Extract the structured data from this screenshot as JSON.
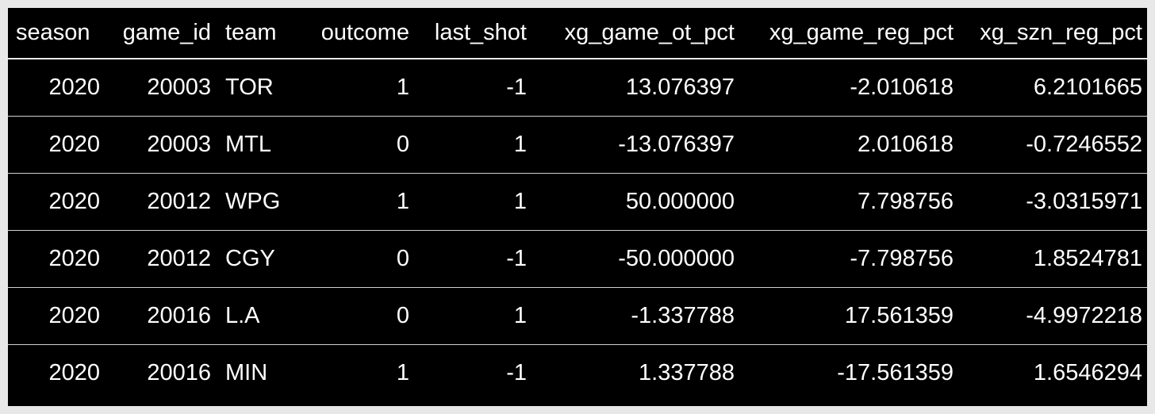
{
  "table": {
    "columns": [
      "season",
      "game_id",
      "team",
      "outcome",
      "last_shot",
      "xg_game_ot_pct",
      "xg_game_reg_pct",
      "xg_szn_reg_pct"
    ],
    "rows": [
      [
        "2020",
        "20003",
        "TOR",
        "1",
        "-1",
        "13.076397",
        "-2.010618",
        "6.2101665"
      ],
      [
        "2020",
        "20003",
        "MTL",
        "0",
        "1",
        "-13.076397",
        "2.010618",
        "-0.7246552"
      ],
      [
        "2020",
        "20012",
        "WPG",
        "1",
        "1",
        "50.000000",
        "7.798756",
        "-3.0315971"
      ],
      [
        "2020",
        "20012",
        "CGY",
        "0",
        "-1",
        "-50.000000",
        "-7.798756",
        "1.8524781"
      ],
      [
        "2020",
        "20016",
        "L.A",
        "0",
        "1",
        "-1.337788",
        "17.561359",
        "-4.9972218"
      ],
      [
        "2020",
        "20016",
        "MIN",
        "1",
        "-1",
        "1.337788",
        "-17.561359",
        "1.6546294"
      ]
    ]
  },
  "colors": {
    "background": "#000000",
    "text": "#ffffff",
    "frame": "#e8e8e8"
  }
}
